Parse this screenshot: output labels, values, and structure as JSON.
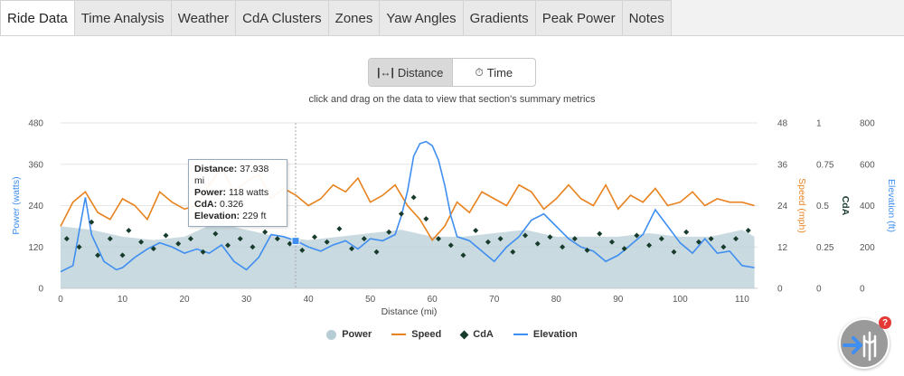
{
  "tabs": [
    "Ride Data",
    "Time Analysis",
    "Weather",
    "CdA Clusters",
    "Zones",
    "Yaw Angles",
    "Gradients",
    "Peak Power",
    "Notes"
  ],
  "active_tab": "Ride Data",
  "toggle": {
    "distance_label": "Distance",
    "time_label": "Time",
    "selected": "Distance"
  },
  "hint": "click and drag on the data to view that section's summary metrics",
  "tooltip": {
    "distance_label": "Distance:",
    "distance_value": "37.938 mi",
    "power_label": "Power:",
    "power_value": "118 watts",
    "cda_label": "CdA:",
    "cda_value": "0.326",
    "elevation_label": "Elevation:",
    "elevation_value": "229 ft"
  },
  "legend": [
    "Power",
    "Speed",
    "CdA",
    "Elevation"
  ],
  "helper_badge": "?",
  "colors": {
    "power": "#b7cdd6",
    "speed": "#e8821e",
    "cda": "#173b2b",
    "elevation": "#3f8ef0",
    "accent": "#4a90e2"
  },
  "chart_data": {
    "type": "line",
    "xlabel": "Distance (mi)",
    "x_ticks": [
      0,
      10,
      20,
      30,
      40,
      50,
      60,
      70,
      80,
      90,
      100,
      110
    ],
    "xlim": [
      0,
      112.5
    ],
    "axes": {
      "power": {
        "label": "Power (watts)",
        "ticks": [
          0,
          120,
          240,
          360,
          480
        ],
        "ylim": [
          0,
          480
        ]
      },
      "speed": {
        "label": "Speed (mph)",
        "ticks": [
          0,
          12,
          24,
          36,
          48
        ],
        "ylim": [
          0,
          48
        ]
      },
      "cda": {
        "label": "CdA",
        "ticks": [
          0,
          0.25,
          0.5,
          0.75,
          1
        ],
        "ylim": [
          0,
          1
        ]
      },
      "elevation": {
        "label": "Elevation (ft)",
        "ticks": [
          0,
          200,
          400,
          600,
          800
        ],
        "ylim": [
          0,
          800
        ]
      }
    },
    "series": [
      {
        "name": "Elevation",
        "axis": "elevation",
        "x": [
          0,
          2,
          4,
          5,
          7,
          9,
          10,
          12,
          14,
          16,
          18,
          20,
          22,
          24,
          26,
          28,
          30,
          32,
          34,
          36,
          38,
          40,
          42,
          44,
          46,
          48,
          50,
          52,
          54,
          55,
          56,
          57,
          58,
          59,
          60,
          61,
          62,
          63,
          64,
          66,
          68,
          70,
          72,
          74,
          76,
          78,
          80,
          82,
          84,
          86,
          88,
          90,
          92,
          94,
          96,
          98,
          100,
          102,
          104,
          106,
          108,
          110,
          112
        ],
        "y": [
          80,
          110,
          440,
          260,
          130,
          90,
          100,
          150,
          190,
          220,
          200,
          170,
          190,
          170,
          210,
          130,
          90,
          150,
          260,
          250,
          230,
          200,
          180,
          210,
          230,
          190,
          240,
          230,
          260,
          350,
          470,
          640,
          700,
          710,
          690,
          620,
          500,
          350,
          250,
          230,
          180,
          130,
          200,
          250,
          330,
          360,
          300,
          240,
          200,
          180,
          130,
          160,
          210,
          260,
          380,
          300,
          220,
          170,
          240,
          170,
          180,
          110,
          100
        ]
      },
      {
        "name": "Speed",
        "axis": "speed",
        "x": [
          0,
          2,
          4,
          6,
          8,
          10,
          12,
          14,
          16,
          18,
          20,
          22,
          24,
          26,
          28,
          30,
          32,
          34,
          36,
          38,
          40,
          42,
          44,
          46,
          48,
          50,
          52,
          54,
          56,
          58,
          60,
          62,
          64,
          66,
          68,
          70,
          72,
          74,
          76,
          78,
          80,
          82,
          84,
          86,
          88,
          90,
          92,
          94,
          96,
          98,
          100,
          102,
          104,
          106,
          108,
          110,
          112
        ],
        "y": [
          18,
          25,
          28,
          22,
          20,
          26,
          24,
          20,
          28,
          25,
          23,
          24,
          30,
          35,
          28,
          31,
          33,
          26,
          29,
          27,
          24,
          26,
          30,
          28,
          32,
          25,
          27,
          30,
          24,
          20,
          14,
          18,
          25,
          22,
          28,
          26,
          24,
          30,
          28,
          23,
          26,
          30,
          26,
          24,
          30,
          23,
          27,
          25,
          29,
          24,
          25,
          28,
          24,
          26,
          25,
          25,
          24
        ]
      },
      {
        "name": "Power",
        "axis": "power",
        "x": [
          0,
          5,
          10,
          15,
          20,
          25,
          30,
          35,
          40,
          45,
          50,
          55,
          60,
          65,
          70,
          75,
          80,
          85,
          90,
          95,
          100,
          105,
          110,
          112
        ],
        "y": [
          180,
          170,
          150,
          140,
          150,
          190,
          170,
          150,
          140,
          150,
          160,
          170,
          150,
          150,
          160,
          170,
          150,
          150,
          150,
          160,
          150,
          150,
          170,
          150
        ]
      },
      {
        "name": "CdA",
        "axis": "cda",
        "x": [
          1,
          3,
          5,
          6,
          8,
          10,
          11,
          13,
          15,
          17,
          19,
          21,
          23,
          25,
          27,
          29,
          31,
          33,
          35,
          37,
          39,
          41,
          43,
          45,
          47,
          49,
          51,
          53,
          55,
          57,
          59,
          61,
          63,
          65,
          67,
          69,
          71,
          73,
          75,
          77,
          79,
          81,
          83,
          85,
          87,
          89,
          91,
          93,
          95,
          97,
          99,
          101,
          103,
          105,
          107,
          109,
          111
        ],
        "y": [
          0.3,
          0.25,
          0.4,
          0.2,
          0.3,
          0.2,
          0.35,
          0.28,
          0.24,
          0.32,
          0.27,
          0.3,
          0.22,
          0.33,
          0.26,
          0.3,
          0.25,
          0.34,
          0.3,
          0.27,
          0.23,
          0.31,
          0.28,
          0.36,
          0.24,
          0.3,
          0.22,
          0.34,
          0.45,
          0.55,
          0.42,
          0.3,
          0.26,
          0.2,
          0.35,
          0.28,
          0.3,
          0.22,
          0.32,
          0.27,
          0.31,
          0.25,
          0.3,
          0.23,
          0.33,
          0.28,
          0.24,
          0.32,
          0.26,
          0.3,
          0.22,
          0.34,
          0.28,
          0.3,
          0.25,
          0.3,
          0.35
        ]
      }
    ]
  }
}
